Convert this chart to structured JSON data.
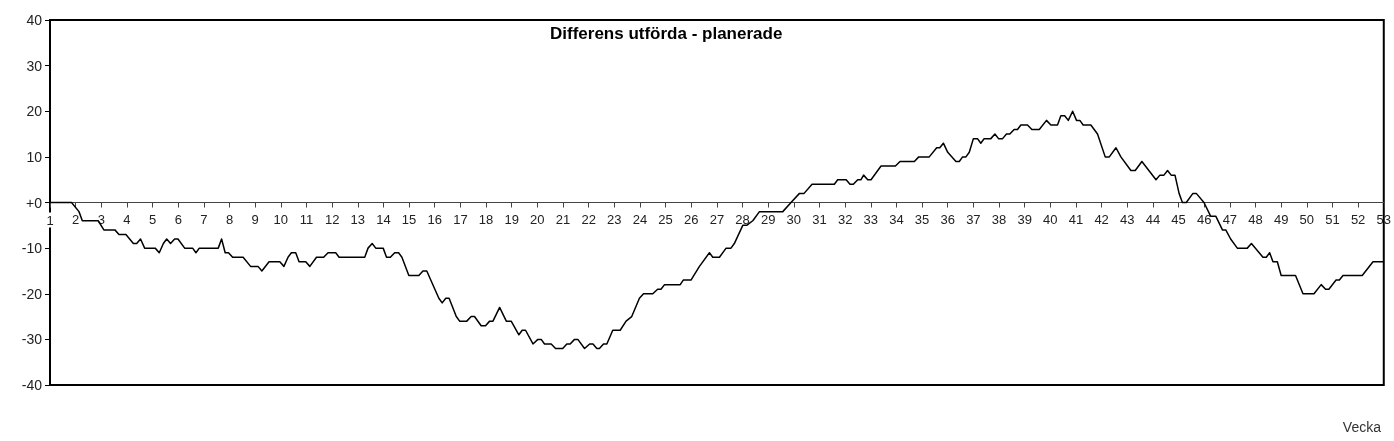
{
  "chart_data": {
    "type": "line",
    "title": "Differens utförda - planerade",
    "xlabel": "Vecka",
    "xlim": [
      1,
      53
    ],
    "xticks": [
      1,
      2,
      3,
      4,
      5,
      6,
      7,
      8,
      9,
      10,
      11,
      12,
      13,
      14,
      15,
      16,
      17,
      18,
      19,
      20,
      21,
      22,
      23,
      24,
      25,
      26,
      27,
      28,
      29,
      30,
      31,
      32,
      33,
      34,
      35,
      36,
      37,
      38,
      39,
      40,
      41,
      42,
      43,
      44,
      45,
      46,
      47,
      48,
      49,
      50,
      51,
      52,
      53
    ],
    "ylim": [
      -40,
      40
    ],
    "yticks": [
      -40,
      -30,
      -20,
      -10,
      {
        "value": 0,
        "label": "+0"
      },
      10,
      20,
      30,
      40
    ],
    "marker": "none",
    "line_style": "solid",
    "series": [
      {
        "color": "#000000",
        "x": [
          1,
          1.84,
          2.13,
          2.26,
          2.88,
          3.1,
          3.53,
          3.69,
          3.96,
          4.25,
          4.38,
          4.53,
          4.69,
          5.1,
          5.26,
          5.42,
          5.55,
          5.7,
          5.86,
          5.99,
          6.25,
          6.56,
          6.69,
          6.82,
          7.56,
          7.69,
          7.83,
          7.96,
          8.12,
          8.53,
          8.82,
          9.11,
          9.26,
          9.54,
          9.96,
          10.12,
          10.28,
          10.41,
          10.58,
          10.71,
          10.97,
          11.13,
          11.39,
          11.67,
          11.84,
          12.14,
          12.27,
          13.27,
          13.4,
          13.56,
          13.7,
          13.99,
          14.12,
          14.27,
          14.44,
          14.59,
          14.72,
          14.99,
          15.38,
          15.54,
          15.69,
          16.16,
          16.29,
          16.43,
          16.56,
          16.84,
          16.97,
          17.25,
          17.42,
          17.55,
          17.81,
          17.98,
          18.14,
          18.27,
          18.53,
          18.79,
          18.98,
          19.28,
          19.41,
          19.54,
          19.83,
          20.02,
          20.15,
          20.28,
          20.54,
          20.71,
          20.99,
          21.15,
          21.28,
          21.45,
          21.58,
          21.84,
          22.04,
          22.17,
          22.32,
          22.42,
          22.58,
          22.71,
          22.94,
          23.23,
          23.46,
          23.68,
          23.98,
          24.14,
          24.5,
          24.69,
          24.82,
          24.96,
          25.57,
          25.69,
          25.99,
          26.32,
          26.71,
          26.84,
          27.1,
          27.36,
          27.55,
          27.68,
          28.01,
          28.16,
          28.4,
          28.66,
          29.57,
          29.89,
          30.22,
          30.4,
          30.71,
          31.58,
          31.71,
          32.04,
          32.19,
          32.32,
          32.49,
          32.62,
          32.72,
          32.88,
          33.01,
          33.4,
          33.96,
          34.14,
          34.7,
          34.87,
          35.28,
          35.57,
          35.69,
          35.83,
          36,
          36.32,
          36.45,
          36.58,
          36.71,
          36.84,
          37,
          37.16,
          37.29,
          37.42,
          37.68,
          37.84,
          37.98,
          38.14,
          38.29,
          38.42,
          38.59,
          38.72,
          38.85,
          39.11,
          39.28,
          39.57,
          39.85,
          40.02,
          40.28,
          40.41,
          40.56,
          40.7,
          40.87,
          41.02,
          41.15,
          41.28,
          41.58,
          41.84,
          42.14,
          42.3,
          42.56,
          42.75,
          43.14,
          43.31,
          43.57,
          44.12,
          44.27,
          44.43,
          44.57,
          44.71,
          44.86,
          45.02,
          45.15,
          45.3,
          45.56,
          45.69,
          45.99,
          46.25,
          46.45,
          46.71,
          46.84,
          47.03,
          47.29,
          47.68,
          47.84,
          48.29,
          48.42,
          48.55,
          48.68,
          48.85,
          49,
          49.56,
          49.85,
          50.28,
          50.56,
          50.73,
          50.86,
          51.14,
          51.27,
          51.41,
          52.16,
          52.58,
          52.97
        ],
        "values": [
          0,
          0,
          -2,
          -4,
          -4,
          -6,
          -6,
          -7,
          -7,
          -9,
          -9,
          -8,
          -10,
          -10,
          -11,
          -9,
          -8,
          -9,
          -8,
          -8,
          -10,
          -10,
          -11,
          -10,
          -10,
          -8,
          -11,
          -11,
          -12,
          -12,
          -14,
          -14,
          -15,
          -13,
          -13,
          -14,
          -12,
          -11,
          -11,
          -13,
          -13,
          -14,
          -12,
          -12,
          -11,
          -11,
          -12,
          -12,
          -10,
          -9,
          -10,
          -10,
          -12,
          -12,
          -11,
          -11,
          -12,
          -16,
          -16,
          -15,
          -15,
          -21,
          -22,
          -21,
          -21,
          -25,
          -26,
          -26,
          -25,
          -25,
          -27,
          -27,
          -26,
          -26,
          -23,
          -26,
          -26,
          -29,
          -28,
          -28,
          -31,
          -30,
          -30,
          -31,
          -31,
          -32,
          -32,
          -31,
          -31,
          -30,
          -30,
          -32,
          -31,
          -31,
          -32,
          -32,
          -31,
          -31,
          -28,
          -28,
          -26,
          -25,
          -21,
          -20,
          -20,
          -19,
          -19,
          -18,
          -18,
          -17,
          -17,
          -14,
          -11,
          -12,
          -12,
          -10,
          -10,
          -9,
          -5,
          -5,
          -4,
          -2,
          -2,
          0,
          2,
          2,
          4,
          4,
          5,
          5,
          4,
          4,
          5,
          5,
          6,
          5,
          5,
          8,
          8,
          9,
          9,
          10,
          10,
          12,
          12,
          13,
          11,
          9,
          9,
          10,
          10,
          11,
          14,
          14,
          13,
          14,
          14,
          15,
          14,
          14,
          15,
          15,
          16,
          16,
          17,
          17,
          16,
          16,
          18,
          17,
          17,
          19,
          19,
          18,
          20,
          18,
          18,
          17,
          17,
          15,
          10,
          10,
          12,
          10,
          7,
          7,
          9,
          5,
          6,
          6,
          7,
          6,
          6,
          2,
          0,
          0,
          2,
          2,
          0,
          -3,
          -3,
          -6,
          -6,
          -8,
          -10,
          -10,
          -9,
          -12,
          -12,
          -11,
          -13,
          -13,
          -16,
          -16,
          -20,
          -20,
          -18,
          -19,
          -19,
          -17,
          -17,
          -16,
          -16,
          -13,
          -13
        ]
      }
    ]
  }
}
